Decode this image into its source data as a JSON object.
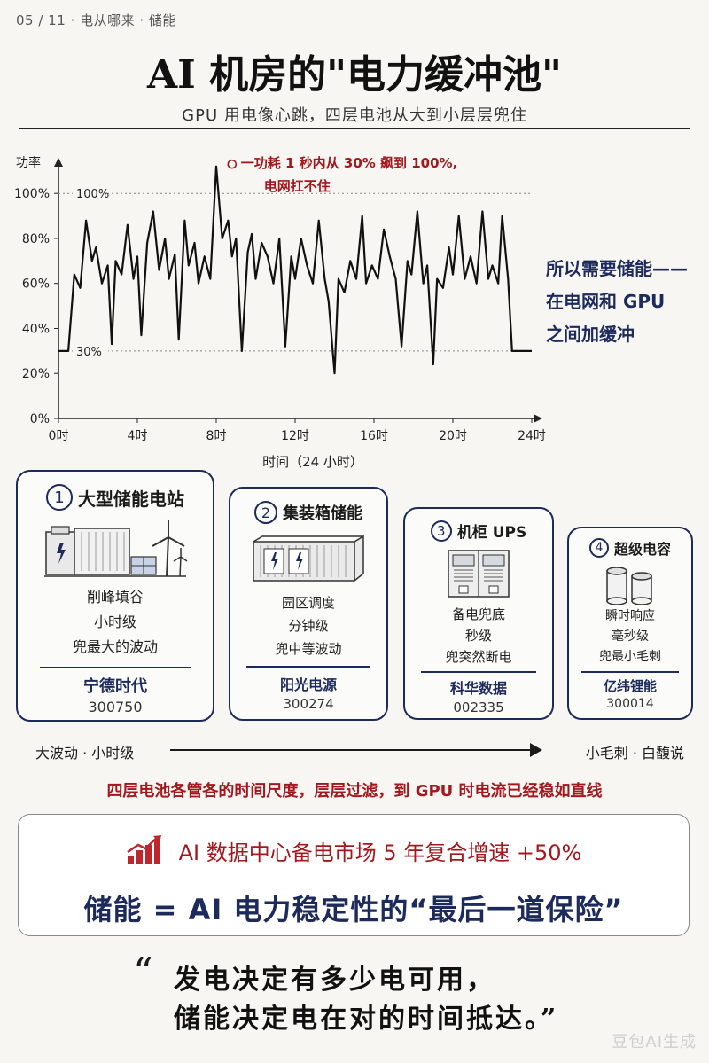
{
  "header": {
    "breadcrumb": "05 / 11 · 电从哪来 · 储能",
    "title": "AI 机房的\"电力缓冲池\"",
    "subtitle": "GPU 用电像心跳，四层电池从大到小层层兜住"
  },
  "chart_data": {
    "type": "line",
    "ylabel": "功率",
    "xlabel": "时间（24 小时）",
    "x_ticks": [
      "0时",
      "4时",
      "8时",
      "12时",
      "16时",
      "20时",
      "24时"
    ],
    "y_ticks": [
      "0%",
      "20%",
      "40%",
      "60%",
      "80%",
      "100%"
    ],
    "xlim": [
      0,
      24
    ],
    "ylim": [
      0,
      100
    ],
    "reference_lines": [
      {
        "label": "100%",
        "value": 100
      },
      {
        "label": "30%",
        "value": 30
      }
    ],
    "annotation": {
      "lines": [
        "一功耗 1 秒内从 30% 飙到 100%,",
        "电网扛不住"
      ],
      "x": 8.8,
      "y": 113
    },
    "series": [
      {
        "x": [
          0,
          0.5,
          0.8,
          1.1,
          1.4,
          1.7,
          1.9,
          2.2,
          2.5,
          2.7,
          2.9,
          3.2,
          3.5,
          3.8,
          4.0,
          4.2,
          4.5,
          4.8,
          5.1,
          5.4,
          5.6,
          5.9,
          6.1,
          6.4,
          6.6,
          6.9,
          7.1,
          7.4,
          7.7,
          8.0,
          8.3,
          8.6,
          8.8,
          9.0,
          9.3,
          9.6,
          9.8,
          10.0,
          10.3,
          10.6,
          10.9,
          11.2,
          11.5,
          11.8,
          12.0,
          12.3,
          12.6,
          12.9,
          13.2,
          13.5,
          13.7,
          14.0,
          14.2,
          14.5,
          14.8,
          15.1,
          15.4,
          15.6,
          15.9,
          16.2,
          16.5,
          16.8,
          17.1,
          17.4,
          17.7,
          17.9,
          18.2,
          18.5,
          18.7,
          19.0,
          19.2,
          19.5,
          19.8,
          20.0,
          20.3,
          20.6,
          20.9,
          21.2,
          21.5,
          21.8,
          22.0,
          22.3,
          22.5,
          22.8,
          23.0,
          23.3,
          23.6,
          24.0
        ],
        "y": [
          30,
          30,
          64,
          58,
          88,
          70,
          76,
          60,
          68,
          33,
          70,
          64,
          86,
          62,
          72,
          37,
          78,
          92,
          66,
          80,
          62,
          73,
          35,
          88,
          68,
          78,
          60,
          72,
          62,
          112,
          80,
          88,
          72,
          80,
          30,
          74,
          82,
          62,
          78,
          72,
          60,
          80,
          32,
          72,
          62,
          80,
          68,
          60,
          88,
          62,
          52,
          20,
          62,
          56,
          70,
          62,
          90,
          60,
          68,
          62,
          84,
          72,
          62,
          32,
          70,
          64,
          92,
          60,
          68,
          24,
          62,
          58,
          76,
          64,
          90,
          62,
          72,
          60,
          92,
          62,
          68,
          60,
          90,
          62,
          30,
          30,
          30,
          30
        ],
        "note": "line trace of GPU power over 24h (values read off axes)"
      }
    ]
  },
  "side_note": [
    "所以需要储能——",
    "在电网和 GPU",
    "之间加缓冲"
  ],
  "cards": [
    {
      "num": "1",
      "title": "大型储能电站",
      "lines": [
        "削峰填谷",
        "小时级",
        "兜最大的波动"
      ],
      "company": "宁德时代",
      "code": "300750",
      "illustration": "power-station-illustration"
    },
    {
      "num": "2",
      "title": "集装箱储能",
      "lines": [
        "园区调度",
        "分钟级",
        "兜中等波动"
      ],
      "company": "阳光电源",
      "code": "300274",
      "illustration": "container-illustration"
    },
    {
      "num": "3",
      "title": "机柜 UPS",
      "lines": [
        "备电兜底",
        "秒级",
        "兜突然断电"
      ],
      "company": "科华数据",
      "code": "002335",
      "illustration": "ups-cabinet-illustration"
    },
    {
      "num": "4",
      "title": "超级电容",
      "lines": [
        "瞬时响应",
        "毫秒级",
        "兜最小毛刺"
      ],
      "company": "亿纬锂能",
      "code": "300014",
      "illustration": "capacitor-illustration"
    }
  ],
  "arrow": {
    "left": "大波动 · 小时级",
    "right": "小毛刺 · 白馥说"
  },
  "caption": "四层电池各管各的时间尺度，层层过滤，到 GPU 时电流已经稳如直线",
  "panel": {
    "growth_text": "AI 数据中心备电市场 5 年复合增速 +50%",
    "conclusion": "储能 = AI 电力稳定性的“最后一道保险”"
  },
  "quote": [
    "发电决定有多少电可用，",
    "储能决定电在对的时间抵达。”"
  ],
  "quote_mark": "“",
  "watermark": "豆包AI生成",
  "colors": {
    "navy": "#1d2a5c",
    "red": "#a4171d",
    "text": "#1b1b1b"
  }
}
